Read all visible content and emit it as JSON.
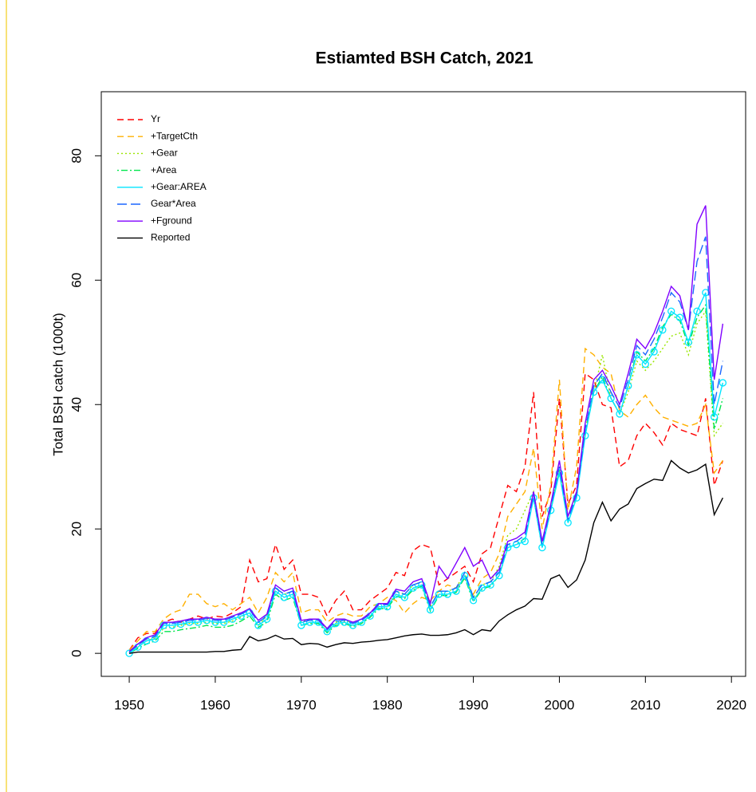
{
  "chart_data": {
    "type": "line",
    "title": "Estiamted BSH Catch, 2021",
    "y_label": "Total BSH catch (1000t)",
    "x": [
      1950,
      1951,
      1952,
      1953,
      1954,
      1955,
      1956,
      1957,
      1958,
      1959,
      1960,
      1961,
      1962,
      1963,
      1964,
      1965,
      1966,
      1967,
      1968,
      1969,
      1970,
      1971,
      1972,
      1973,
      1974,
      1975,
      1976,
      1977,
      1978,
      1979,
      1980,
      1981,
      1982,
      1983,
      1984,
      1985,
      1986,
      1987,
      1988,
      1989,
      1990,
      1991,
      1992,
      1993,
      1994,
      1995,
      1996,
      1997,
      1998,
      1999,
      2000,
      2001,
      2002,
      2003,
      2004,
      2005,
      2006,
      2007,
      2008,
      2009,
      2010,
      2011,
      2012,
      2013,
      2014,
      2015,
      2016,
      2017,
      2018,
      2019
    ],
    "xlim": [
      1946.75,
      2021.65
    ],
    "xticks": [
      1950,
      1960,
      1970,
      1980,
      1990,
      2000,
      2010,
      2020
    ],
    "ylim": [
      -3.7,
      90.3
    ],
    "yticks": [
      0,
      20,
      40,
      60,
      80
    ],
    "legend_position": "top-left",
    "series": [
      {
        "name": "Yr",
        "color": "#ff0000",
        "linestyle": "dashed",
        "values": [
          0.5,
          2.5,
          3.2,
          3.2,
          5.0,
          5.5,
          5.0,
          5.5,
          6.0,
          5.5,
          6.0,
          5.8,
          6.5,
          7.5,
          15.0,
          11.5,
          12.0,
          17.5,
          13.5,
          15.0,
          9.5,
          9.5,
          9.0,
          6.0,
          8.5,
          10.0,
          7.0,
          7.0,
          8.5,
          9.5,
          10.5,
          13.0,
          12.5,
          16.5,
          17.5,
          17.0,
          11.0,
          12.0,
          13.0,
          14.0,
          11.5,
          16.0,
          17.0,
          22.0,
          27.0,
          26.0,
          30.0,
          42.0,
          22.0,
          26.0,
          41.0,
          24.0,
          27.0,
          45.0,
          44.0,
          40.0,
          39.5,
          30.0,
          31.0,
          35.0,
          37.0,
          35.5,
          33.5,
          37.0,
          36.0,
          35.5,
          35.0,
          41.0,
          27.0,
          31.0
        ]
      },
      {
        "name": "+TargetCth",
        "color": "#ffb000",
        "linestyle": "dashed",
        "values": [
          0.5,
          2.0,
          3.5,
          3.5,
          5.5,
          6.5,
          7.0,
          9.5,
          9.5,
          8.0,
          7.5,
          8.0,
          7.0,
          8.0,
          9.0,
          6.5,
          9.0,
          13.0,
          11.5,
          13.0,
          6.5,
          7.0,
          7.0,
          5.0,
          6.0,
          6.5,
          6.0,
          6.0,
          7.5,
          8.0,
          9.0,
          8.5,
          6.5,
          8.0,
          9.0,
          8.5,
          10.0,
          11.0,
          10.5,
          12.0,
          9.5,
          12.0,
          13.0,
          16.0,
          22.0,
          24.0,
          26.0,
          33.0,
          20.0,
          27.0,
          44.0,
          23.0,
          30.0,
          49.0,
          48.0,
          46.0,
          45.0,
          39.0,
          38.0,
          40.0,
          41.5,
          39.5,
          38.0,
          37.5,
          37.0,
          36.5,
          37.0,
          40.0,
          29.0,
          31.0
        ]
      },
      {
        "name": "+Gear",
        "color": "#99e600",
        "linestyle": "dotted",
        "values": [
          0.2,
          1.2,
          2.0,
          2.5,
          4.0,
          4.2,
          4.5,
          4.8,
          4.8,
          5.0,
          4.8,
          4.8,
          5.2,
          5.8,
          6.5,
          4.5,
          6.0,
          10.5,
          9.5,
          10.0,
          5.0,
          5.5,
          5.5,
          3.8,
          5.0,
          5.2,
          5.0,
          5.5,
          6.5,
          8.0,
          8.0,
          10.0,
          9.5,
          11.0,
          11.5,
          7.5,
          10.0,
          10.0,
          10.5,
          13.0,
          9.0,
          11.0,
          11.5,
          14.0,
          19.0,
          20.0,
          23.0,
          26.0,
          18.0,
          24.0,
          30.0,
          22.0,
          26.0,
          36.0,
          42.0,
          48.0,
          41.0,
          38.5,
          42.0,
          47.0,
          45.5,
          47.0,
          49.0,
          51.0,
          51.5,
          48.0,
          53.0,
          55.0,
          35.0,
          37.0
        ]
      },
      {
        "name": "+Area",
        "color": "#00e64d",
        "linestyle": "dotdash",
        "values": [
          0.0,
          0.8,
          1.5,
          2.0,
          3.5,
          3.5,
          3.8,
          4.0,
          4.2,
          4.5,
          4.2,
          4.2,
          4.5,
          5.2,
          6.0,
          4.2,
          5.0,
          9.5,
          8.5,
          9.0,
          4.5,
          4.8,
          4.8,
          3.3,
          4.5,
          4.8,
          4.3,
          4.8,
          5.8,
          7.2,
          7.2,
          9.2,
          8.8,
          10.2,
          10.8,
          6.8,
          9.3,
          9.3,
          9.8,
          12.2,
          8.3,
          10.3,
          10.8,
          12.5,
          17.0,
          17.5,
          18.5,
          25.0,
          17.0,
          23.0,
          29.5,
          21.0,
          25.5,
          35.5,
          42.0,
          44.5,
          41.0,
          38.5,
          43.0,
          48.5,
          47.0,
          49.0,
          52.5,
          54.5,
          53.5,
          49.5,
          54.0,
          56.0,
          36.0,
          41.0
        ]
      },
      {
        "name": "+Gear:AREA",
        "color": "#00e5ff",
        "linestyle": "solid",
        "markers": "circle",
        "values": [
          0.0,
          1.0,
          2.0,
          2.3,
          4.5,
          4.5,
          4.7,
          5.0,
          5.0,
          5.3,
          5.0,
          5.0,
          5.5,
          6.0,
          6.5,
          4.5,
          5.5,
          10.0,
          9.0,
          9.5,
          4.5,
          5.0,
          5.0,
          3.5,
          4.8,
          5.0,
          4.5,
          5.0,
          6.0,
          7.5,
          7.5,
          9.5,
          9.0,
          10.5,
          11.0,
          7.0,
          9.5,
          9.5,
          10.0,
          12.5,
          8.5,
          10.5,
          11.0,
          12.5,
          17.0,
          17.5,
          18.0,
          25.0,
          17.0,
          23.0,
          29.0,
          21.0,
          25.0,
          35.0,
          42.0,
          44.0,
          41.0,
          38.5,
          43.0,
          48.0,
          46.5,
          48.5,
          52.0,
          55.0,
          54.0,
          50.0,
          55.0,
          58.0,
          38.0,
          43.5
        ]
      },
      {
        "name": "Gear*Area",
        "color": "#1a66ff",
        "linestyle": "longdash",
        "values": [
          0.2,
          1.3,
          2.3,
          2.7,
          4.8,
          4.8,
          5.0,
          5.3,
          5.3,
          5.6,
          5.3,
          5.3,
          5.8,
          6.3,
          7.0,
          5.0,
          6.0,
          10.5,
          9.5,
          10.0,
          5.0,
          5.3,
          5.3,
          3.8,
          5.2,
          5.3,
          4.8,
          5.3,
          6.3,
          7.8,
          7.8,
          10.0,
          9.5,
          11.0,
          11.5,
          7.5,
          10.0,
          10.0,
          10.5,
          13.0,
          9.0,
          11.0,
          11.5,
          13.0,
          17.5,
          18.0,
          19.0,
          25.5,
          17.5,
          23.5,
          30.0,
          21.5,
          25.5,
          36.0,
          43.0,
          45.0,
          42.0,
          39.5,
          44.0,
          49.5,
          48.0,
          50.5,
          54.0,
          58.0,
          56.5,
          52.0,
          63.0,
          67.0,
          40.0,
          47.0
        ]
      },
      {
        "name": "+Fground",
        "color": "#8000ff",
        "linestyle": "solid",
        "values": [
          0.3,
          1.5,
          2.5,
          3.0,
          5.0,
          5.0,
          5.2,
          5.5,
          5.5,
          5.8,
          5.5,
          5.5,
          6.0,
          6.5,
          7.2,
          5.3,
          6.3,
          11.0,
          10.0,
          10.5,
          5.3,
          5.5,
          5.5,
          4.0,
          5.5,
          5.5,
          5.0,
          5.5,
          6.5,
          8.0,
          8.0,
          10.3,
          10.0,
          11.5,
          12.0,
          8.0,
          14.0,
          12.0,
          14.5,
          17.0,
          14.0,
          15.0,
          12.0,
          13.5,
          18.0,
          18.5,
          19.5,
          26.0,
          18.0,
          24.0,
          31.0,
          22.0,
          26.0,
          37.0,
          44.0,
          45.5,
          43.0,
          40.0,
          45.0,
          50.5,
          49.0,
          51.5,
          55.0,
          59.0,
          57.5,
          52.0,
          69.0,
          72.0,
          44.0,
          53.0
        ]
      },
      {
        "name": "Reported",
        "color": "#000000",
        "linestyle": "solid",
        "values": [
          0.0,
          0.2,
          0.2,
          0.2,
          0.2,
          0.2,
          0.2,
          0.2,
          0.2,
          0.2,
          0.3,
          0.3,
          0.5,
          0.6,
          2.7,
          2.0,
          2.3,
          2.9,
          2.3,
          2.4,
          1.4,
          1.6,
          1.5,
          1.0,
          1.4,
          1.7,
          1.6,
          1.8,
          1.9,
          2.1,
          2.2,
          2.5,
          2.8,
          3.0,
          3.1,
          2.9,
          2.9,
          3.0,
          3.3,
          3.8,
          3.0,
          3.8,
          3.6,
          5.2,
          6.2,
          7.0,
          7.6,
          8.8,
          8.7,
          12.0,
          12.6,
          10.6,
          11.8,
          15.0,
          21.0,
          24.3,
          21.3,
          23.2,
          24.0,
          26.5,
          27.3,
          28.0,
          27.8,
          31.0,
          29.8,
          29.0,
          29.5,
          30.4,
          22.3,
          25.0
        ]
      }
    ]
  }
}
